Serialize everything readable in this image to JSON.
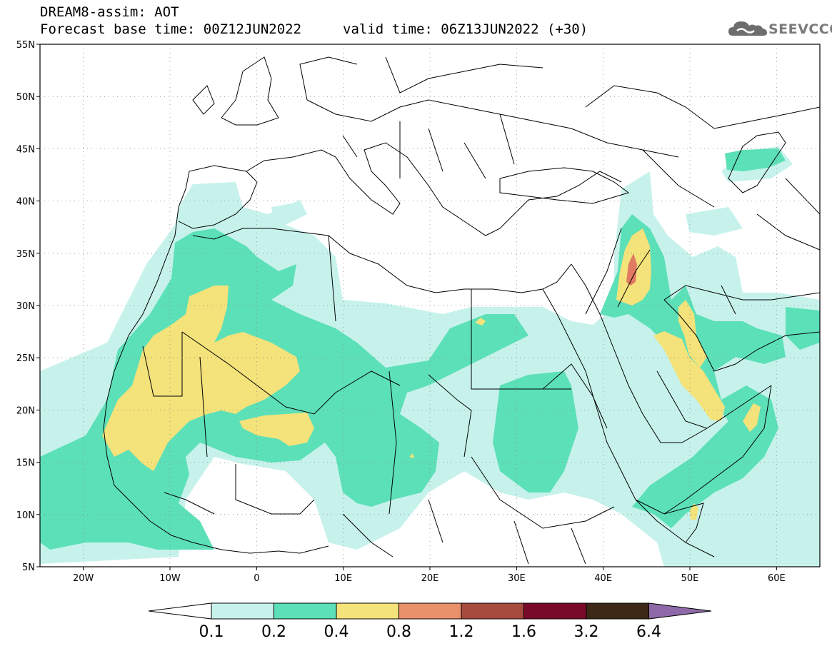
{
  "header": {
    "line1": "DREAM8-assim: AOT",
    "line2": "Forecast base time: 00Z12JUN2022",
    "valid": "valid time: 06Z13JUN2022 (+30)",
    "logo": "SEEVCCC"
  },
  "map": {
    "lat_labels": [
      "55N",
      "50N",
      "45N",
      "40N",
      "35N",
      "30N",
      "25N",
      "20N",
      "15N",
      "10N",
      "5N"
    ],
    "lat_values": [
      55,
      50,
      45,
      40,
      35,
      30,
      25,
      20,
      15,
      10,
      5
    ],
    "lon_labels": [
      "20W",
      "10W",
      "0",
      "10E",
      "20E",
      "30E",
      "40E",
      "50E",
      "60E"
    ],
    "lon_values": [
      -20,
      -10,
      0,
      10,
      20,
      30,
      40,
      50,
      60
    ],
    "extent": {
      "lon": [
        -25,
        65
      ],
      "lat": [
        5,
        55
      ]
    },
    "gridlines": "dotted"
  },
  "legend": {
    "levels": [
      "0.1",
      "0.2",
      "0.4",
      "0.8",
      "1.2",
      "1.6",
      "3.2",
      "6.4"
    ],
    "colors": [
      "#ffffff",
      "#c7f2ec",
      "#5ce0b8",
      "#f4e27a",
      "#e8906a",
      "#a64a3e",
      "#7a0a2a",
      "#3d2818",
      "#8e6aa8"
    ]
  }
}
